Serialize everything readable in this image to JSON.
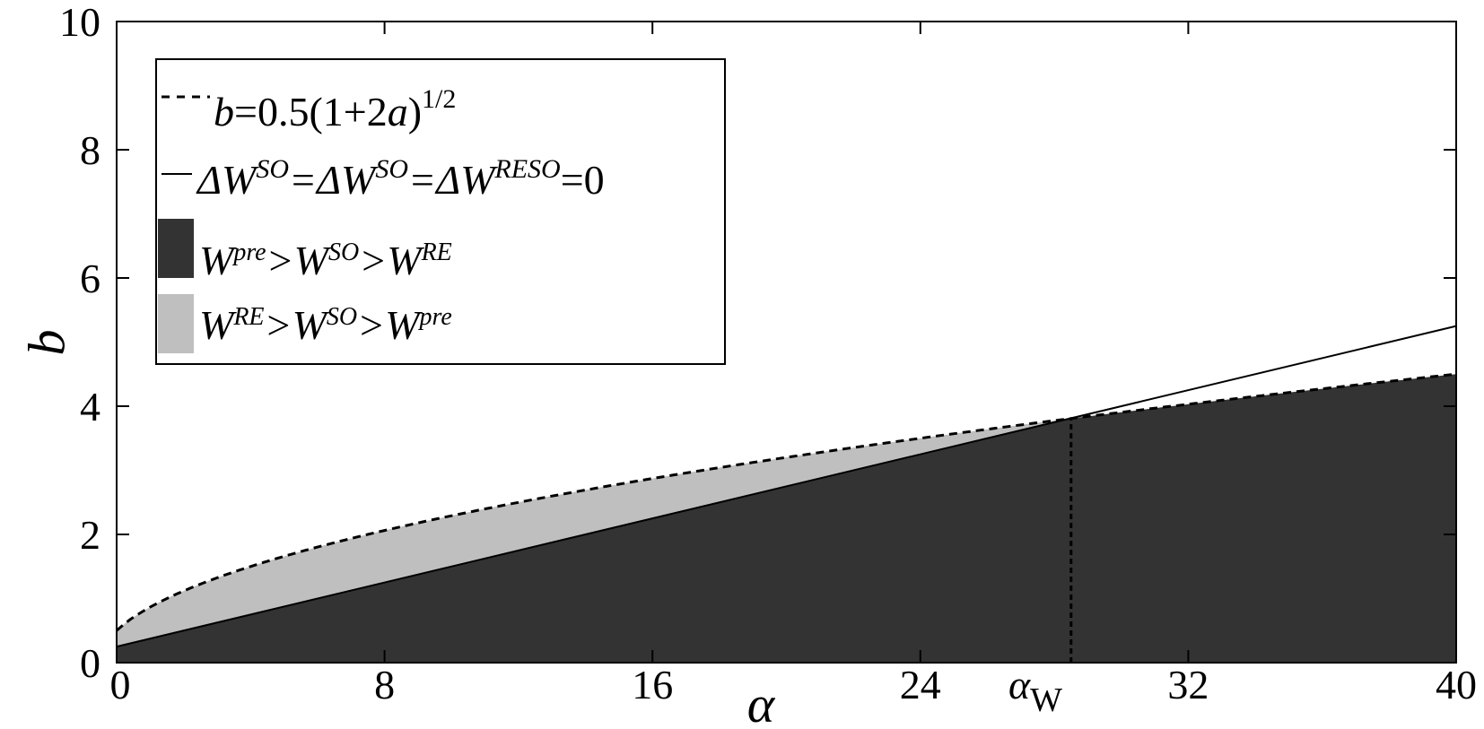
{
  "chart_data": {
    "type": "area",
    "title": "",
    "xlabel": "α",
    "ylabel": "b",
    "xlim": [
      0,
      40
    ],
    "ylim": [
      0,
      10
    ],
    "x_ticks": [
      0,
      8,
      16,
      24,
      32,
      40
    ],
    "y_ticks": [
      0,
      2,
      4,
      6,
      8,
      10
    ],
    "grid": false,
    "legend_position": "top-left",
    "series": [
      {
        "name": "b=0.5(1+2a)^1/2",
        "style": "dashed",
        "color": "#000000",
        "formula": "b = 0.5*sqrt(1+2a)",
        "x": [
          0,
          1,
          2,
          4,
          6,
          8,
          10,
          12,
          14,
          16,
          18,
          20,
          22,
          24,
          26,
          28,
          30,
          32,
          34,
          36,
          38,
          40
        ],
        "y": [
          0.5,
          0.87,
          1.12,
          1.5,
          1.8,
          2.06,
          2.29,
          2.5,
          2.69,
          2.87,
          3.04,
          3.2,
          3.35,
          3.5,
          3.64,
          3.77,
          3.9,
          4.03,
          4.15,
          4.27,
          4.39,
          4.5
        ]
      },
      {
        "name": "ΔW^SO=ΔW^SO=ΔW^RESO=0",
        "style": "solid",
        "color": "#000000",
        "x": [
          0,
          40
        ],
        "y": [
          0.25,
          5.25
        ]
      }
    ],
    "regions": [
      {
        "name": "W^pre>W^SO>W^RE",
        "color": "#333333",
        "description": "below the solid line up to α_W, below the dashed curve after α_W"
      },
      {
        "name": "W^RE>W^SO>W^pre",
        "color": "#bfbfbf",
        "description": "between the solid line and the dashed curve for α < α_W"
      }
    ],
    "annotations": [
      {
        "label": "α_W",
        "x": 28.5,
        "style": "vertical dashed line"
      }
    ]
  },
  "labels": {
    "x_axis": "α",
    "y_axis": "b",
    "alpha_w_main": "α",
    "alpha_w_sub": "W",
    "x_ticks": [
      "0",
      "8",
      "16",
      "24",
      "32",
      "40"
    ],
    "y_ticks": [
      "0",
      "2",
      "4",
      "6",
      "8",
      "10"
    ]
  },
  "legend": {
    "dashed_b": "b",
    "dashed_rest": "=0.5(1+2",
    "dashed_a": "a",
    "dashed_close": ")",
    "dashed_exp": "1/2",
    "solid_d1": "ΔW",
    "solid_s1": "SO",
    "solid_d2": "=ΔW",
    "solid_s2": "SO",
    "solid_d3": "=ΔW",
    "solid_s3": "RESO",
    "solid_end": "=0",
    "dark_w1": "W",
    "dark_s1": "pre",
    "dark_w2": ">W",
    "dark_s2": "SO",
    "dark_w3": ">W",
    "dark_s3": "RE",
    "light_w1": "W",
    "light_s1": "RE",
    "light_w2": ">W",
    "light_s2": "SO",
    "light_w3": ">W",
    "light_s3": "pre"
  },
  "colors": {
    "dark_region": "#333333",
    "light_region": "#bfbfbf",
    "line": "#000000"
  }
}
